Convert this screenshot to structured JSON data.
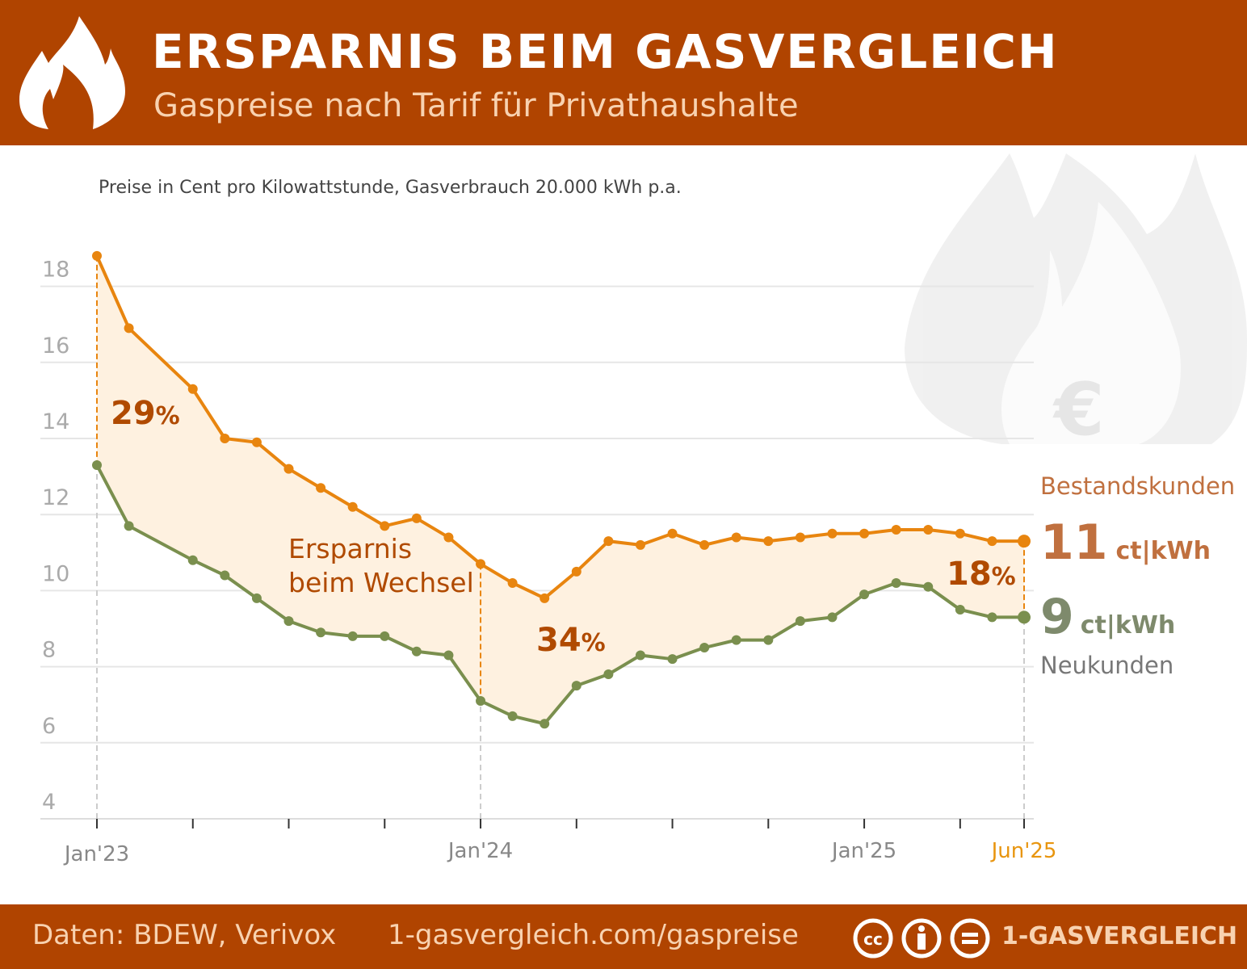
{
  "header": {
    "title": "ERSPARNIS BEIM GASVERGLEICH",
    "subtitle": "Gaspreise nach Tarif für Privathaushalte",
    "logo_icon": "flame-icon"
  },
  "note": "Preise in Cent pro Kilowattstunde, Gasverbrauch 20.000 kWh p.a.",
  "colors": {
    "header": "#B04400",
    "bestandskunden": "#E8850F",
    "neukunden": "#7A8F4E",
    "fill": "#FEF1E0",
    "annotation": "#B04A00"
  },
  "chart_data": {
    "type": "line",
    "title": "",
    "xlabel": "",
    "ylabel": "",
    "ylim": [
      4,
      18
    ],
    "yticks": [
      "4",
      "6",
      "8",
      "10",
      "12",
      "14",
      "16",
      "18"
    ],
    "grid": true,
    "x": [
      "2023-01",
      "2023-02",
      "2023-03",
      "2023-04",
      "2023-05",
      "2023-06",
      "2023-07",
      "2023-08",
      "2023-09",
      "2023-10",
      "2023-11",
      "2023-12",
      "2024-01",
      "2024-02",
      "2024-03",
      "2024-04",
      "2024-05",
      "2024-06",
      "2024-07",
      "2024-08",
      "2024-09",
      "2024-10",
      "2024-11",
      "2024-12",
      "2025-01",
      "2025-02",
      "2025-03",
      "2025-04",
      "2025-05",
      "2025-06"
    ],
    "xtick_labels": [
      {
        "month": "2023-01",
        "label": "Jan'23"
      },
      {
        "month": "2024-01",
        "label": "Jan'24"
      },
      {
        "month": "2025-01",
        "label": "Jan'25"
      },
      {
        "month": "2025-06",
        "label": "Jun'25",
        "highlight": true
      }
    ],
    "series": [
      {
        "name": "Bestandskunden",
        "color": "#E8850F",
        "values": [
          18.8,
          16.9,
          null,
          15.3,
          14.0,
          13.9,
          13.2,
          12.7,
          12.2,
          11.7,
          11.9,
          11.4,
          10.7,
          10.2,
          9.8,
          10.5,
          11.3,
          11.2,
          11.5,
          11.2,
          11.4,
          11.3,
          11.4,
          11.5,
          11.5,
          11.6,
          11.6,
          11.5,
          11.3,
          11.3
        ]
      },
      {
        "name": "Neukunden",
        "color": "#7A8F4E",
        "values": [
          13.3,
          11.7,
          null,
          10.8,
          10.4,
          9.8,
          9.2,
          8.9,
          8.8,
          8.8,
          8.4,
          8.3,
          7.1,
          6.7,
          6.5,
          7.5,
          7.8,
          8.3,
          8.2,
          8.5,
          8.7,
          8.7,
          9.2,
          9.3,
          9.9,
          10.2,
          10.1,
          9.5,
          9.3,
          9.3
        ]
      }
    ],
    "annotations": [
      {
        "month": "2023-01",
        "value": "29",
        "unit": "%"
      },
      {
        "month": "2024-01",
        "value": "34",
        "unit": "%"
      },
      {
        "month": "2025-06",
        "value": "18",
        "unit": "%"
      }
    ],
    "area_label": [
      "Ersparnis",
      "beim Wechsel"
    ],
    "legend": {
      "top_label": "Bestandskunden",
      "top_value": "11",
      "unit": "ct|kWh",
      "bottom_value": "9",
      "bottom_label": "Neukunden"
    }
  },
  "footer": {
    "source": "Daten: BDEW, Verivox",
    "url": "1-gasvergleich.com/gaspreise",
    "brand": "1-GASVERGLEICH",
    "license_icons": [
      "cc-icon",
      "by-icon",
      "nd-icon"
    ]
  }
}
